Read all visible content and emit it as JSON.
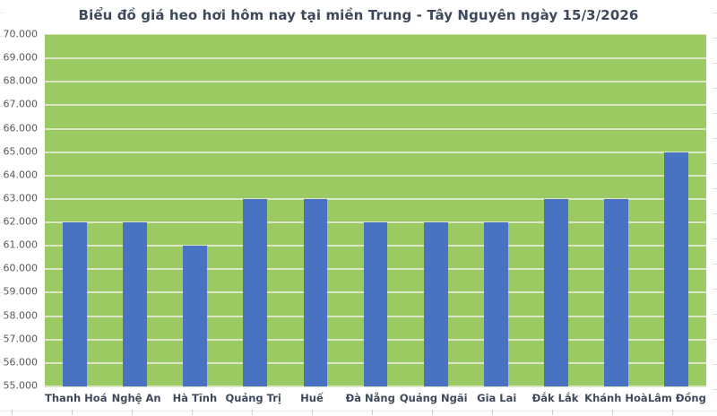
{
  "chart_data": {
    "type": "bar",
    "title": "Biểu đồ giá heo hơi hôm nay tại miền Trung - Tây Nguyên ngày 15/3/2026",
    "categories": [
      "Thanh Hoá",
      "Nghệ An",
      "Hà Tĩnh",
      "Quảng Trị",
      "Huế",
      "Đà Nẵng",
      "Quảng Ngãi",
      "Gia Lai",
      "Đắk Lắk",
      "Khánh Hoà",
      "Lâm Đồng"
    ],
    "values": [
      62000,
      62000,
      61000,
      63000,
      63000,
      62000,
      62000,
      62000,
      63000,
      63000,
      65000
    ],
    "xlabel": "",
    "ylabel": "",
    "ylim": [
      55000,
      70000
    ],
    "ytick_step": 1000,
    "yticklabels": [
      "70.000",
      "69.000",
      "68.000",
      "67.000",
      "66.000",
      "65.000",
      "64.000",
      "63.000",
      "62.000",
      "61.000",
      "60.000",
      "59.000",
      "58.000",
      "57.000",
      "56.000",
      "55.000"
    ],
    "grid": true,
    "legend": false,
    "colors": {
      "bar": "#4a72c2",
      "plot_background": "#9cca62",
      "gridline": "#dce6c6",
      "title_text": "#3e4a5c",
      "xtick_text": "#3e4a5c",
      "ytick_text": "#595959"
    }
  }
}
